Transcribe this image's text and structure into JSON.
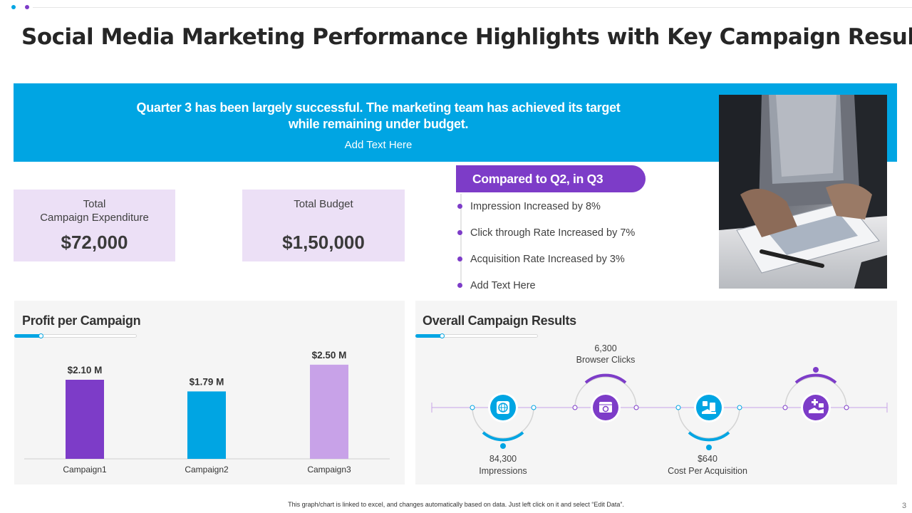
{
  "colors": {
    "accent_blue": "#00a5e3",
    "accent_purple": "#7d3cc8",
    "light_purple": "#c8a2e8",
    "kpi_bg": "#ece0f6"
  },
  "slide": {
    "title": "Social Media Marketing Performance Highlights with Key Campaign Results",
    "page_number": "3",
    "footer_note": "This graph/chart is linked to excel, and changes automatically based on data. Just left click on it and select “Edit Data”."
  },
  "banner": {
    "line1": "Quarter 3 has been largely successful. The marketing team has achieved its target",
    "line2": "while remaining under budget.",
    "sub": "Add Text Here"
  },
  "kpis": [
    {
      "label": "Total\nCampaign Expenditure",
      "value": "$72,000"
    },
    {
      "label": "Total Budget",
      "value": "$1,50,000"
    }
  ],
  "compare": {
    "heading": "Compared to Q2, in Q3",
    "items": [
      "Impression Increased by 8%",
      "Click through Rate Increased by 7%",
      "Acquisition Rate Increased by 3%",
      "Add Text Here"
    ]
  },
  "profit_panel": {
    "title": "Profit per Campaign"
  },
  "results_panel": {
    "title": "Overall Campaign Results",
    "items": [
      {
        "value": "84,300",
        "label": "Impressions",
        "icon": "globe-icon",
        "color": "#00a5e3"
      },
      {
        "value": "6,300",
        "label": "Browser Clicks",
        "icon": "browser-camera-icon",
        "color": "#7d3cc8"
      },
      {
        "value": "$640",
        "label": "Cost Per Acquisition",
        "icon": "money-hand-icon",
        "color": "#00a5e3"
      },
      {
        "value": "",
        "label": "",
        "icon": "hand-plus-icon",
        "color": "#7d3cc8"
      }
    ]
  },
  "chart_data": {
    "type": "bar",
    "title": "Profit per Campaign",
    "categories": [
      "Campaign1",
      "Campaign2",
      "Campaign3"
    ],
    "values": [
      2.1,
      1.79,
      2.5
    ],
    "data_labels": [
      "$2.10 M",
      "$1.79 M",
      "$2.50 M"
    ],
    "bar_colors": [
      "#7d3cc8",
      "#00a5e3",
      "#c8a2e8"
    ],
    "ylim": [
      0,
      2.8
    ],
    "xlabel": "",
    "ylabel": "",
    "unit": "$ M",
    "grid": false,
    "legend": false
  }
}
